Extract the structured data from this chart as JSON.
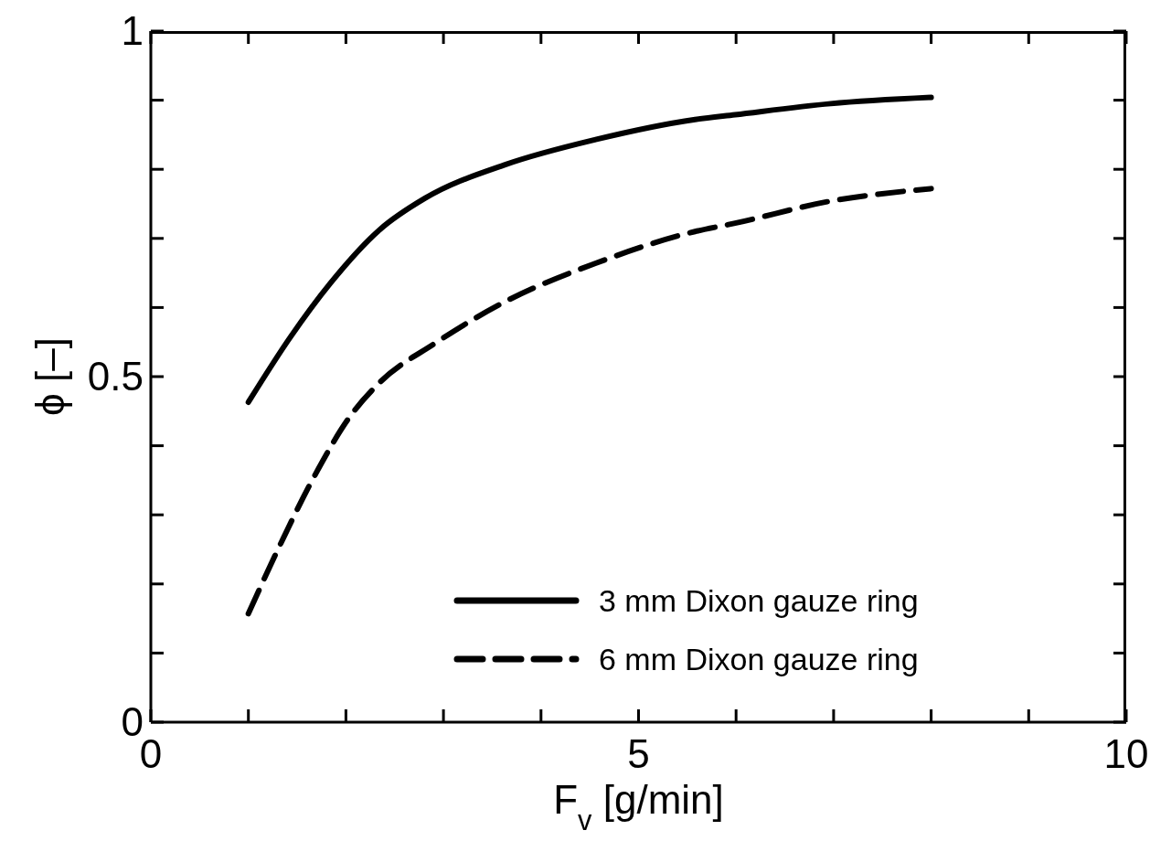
{
  "chart_data": {
    "type": "line",
    "xlabel": "F$_{v}$ [g/min]",
    "ylabel": "ϕ [–]",
    "xlim": [
      0,
      10
    ],
    "xticks": [
      0,
      {
        "value": 1,
        "label": null
      },
      {
        "value": 2,
        "label": null
      },
      {
        "value": 3,
        "label": null
      },
      {
        "value": 4,
        "label": null
      },
      5,
      {
        "value": 6,
        "label": null
      },
      {
        "value": 7,
        "label": null
      },
      {
        "value": 8,
        "label": null
      },
      {
        "value": 9,
        "label": null
      },
      10
    ],
    "ylim": [
      0,
      1
    ],
    "yticks": [
      0,
      {
        "value": 0.1,
        "label": null
      },
      {
        "value": 0.2,
        "label": null
      },
      {
        "value": 0.3,
        "label": null
      },
      {
        "value": 0.4,
        "label": null
      },
      {
        "value": 0.5,
        "label": "0.5"
      },
      {
        "value": 0.6,
        "label": null
      },
      {
        "value": 0.7,
        "label": null
      },
      {
        "value": 0.8,
        "label": null
      },
      {
        "value": 0.9,
        "label": null
      },
      1
    ],
    "grid": false,
    "legend": "bottom right",
    "marker": "none",
    "series": [
      {
        "name": "3 mm Dixon gauze ring",
        "color": "#000000",
        "line_style": "solid",
        "x": [
          1,
          1.43,
          1.84,
          2.35,
          2.81,
          3.64,
          4.56,
          5.58,
          5.99,
          6.97,
          8
        ],
        "values": [
          0.463,
          0.557,
          0.635,
          0.713,
          0.758,
          0.807,
          0.843,
          0.872,
          0.879,
          0.895,
          0.904
        ]
      },
      {
        "name": "6 mm Dixon gauze ring",
        "color": "#000000",
        "line_style": "dashed",
        "x": [
          1,
          1.33,
          1.7,
          2.03,
          2.35,
          2.9,
          3.64,
          4.56,
          5.58,
          5.99,
          6.97,
          8
        ],
        "values": [
          0.157,
          0.258,
          0.362,
          0.44,
          0.492,
          0.547,
          0.609,
          0.664,
          0.71,
          0.722,
          0.754,
          0.772
        ]
      }
    ]
  }
}
